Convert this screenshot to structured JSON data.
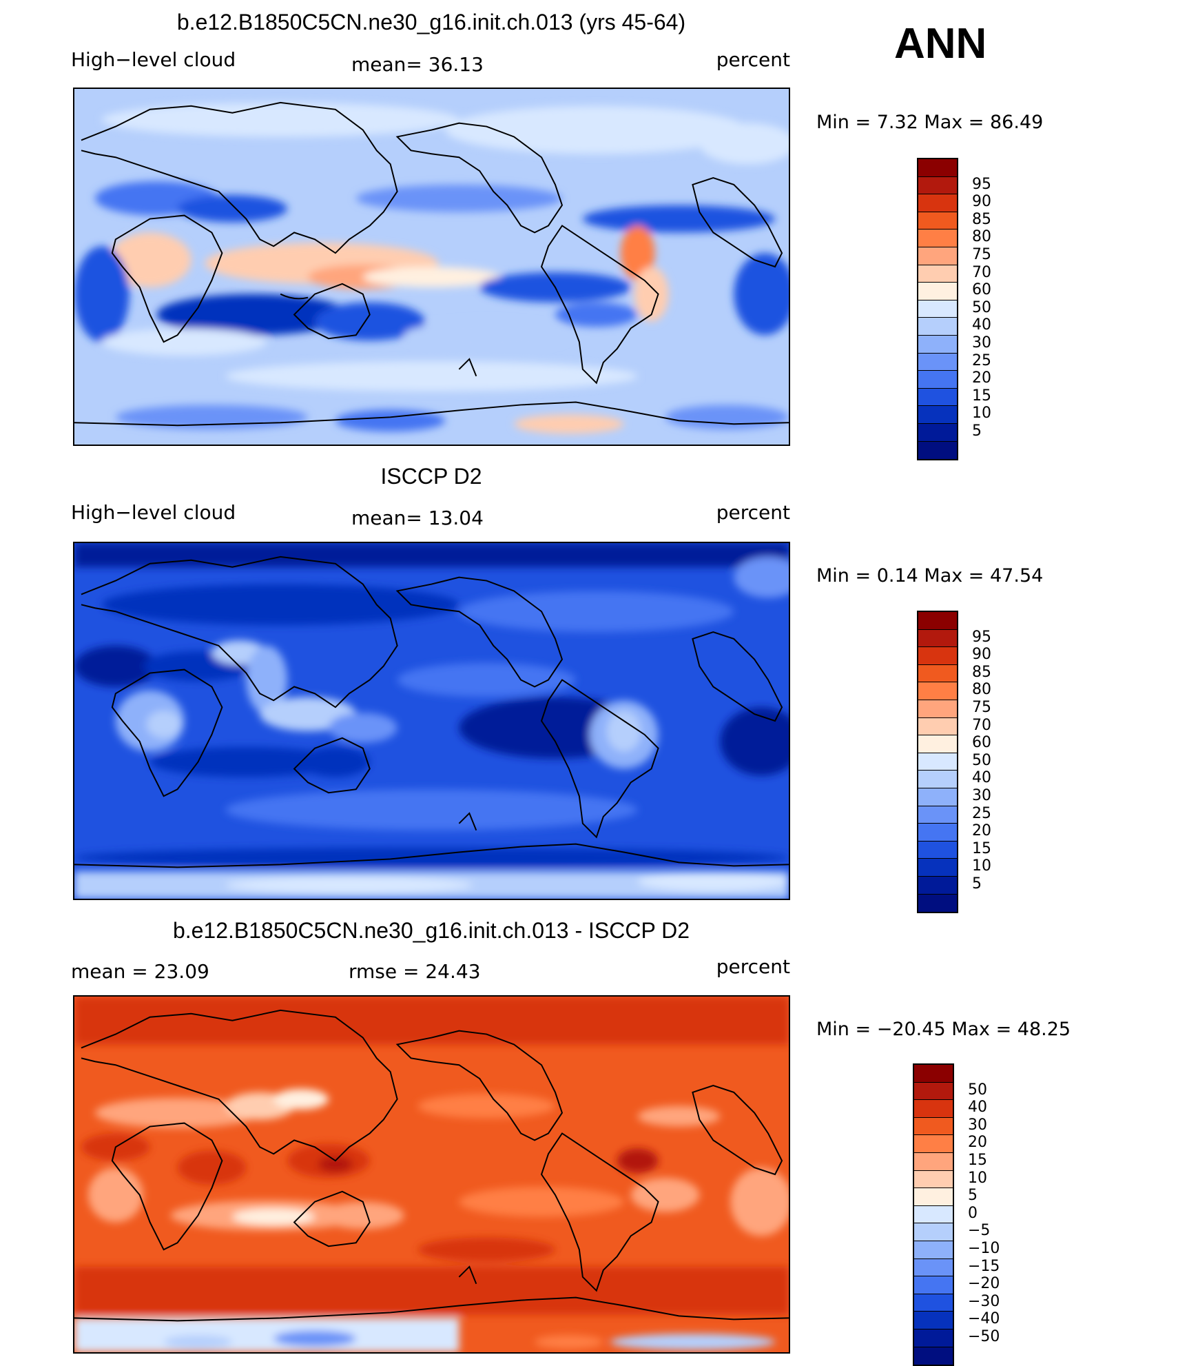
{
  "header": {
    "season": "ANN"
  },
  "panels": [
    {
      "id": "model",
      "title": "b.e12.B1850C5CN.ne30_g16.init.ch.013 (yrs 45-64)",
      "left_label": "High−level cloud",
      "center_label": "mean=   36.13",
      "right_label": "percent",
      "minmax": "Min =    7.32  Max =   86.49",
      "colorbar": {
        "colors": [
          "#8b0000",
          "#b2190d",
          "#d8340f",
          "#f05a1f",
          "#ff7f45",
          "#ffa57d",
          "#ffcdb0",
          "#fff0e0",
          "#d8e8ff",
          "#b5cffc",
          "#8eb1fa",
          "#6a93f8",
          "#4575f2",
          "#1f52e0",
          "#0632bd",
          "#001a99",
          "#000e80"
        ],
        "labels": [
          "95",
          "90",
          "85",
          "80",
          "75",
          "70",
          "60",
          "50",
          "40",
          "30",
          "25",
          "20",
          "15",
          "10",
          "5"
        ]
      }
    },
    {
      "id": "obs",
      "title": "ISCCP D2",
      "left_label": "High−level cloud",
      "center_label": "mean=   13.04",
      "right_label": "percent",
      "minmax": "Min =    0.14  Max =   47.54",
      "colorbar": {
        "colors": [
          "#8b0000",
          "#b2190d",
          "#d8340f",
          "#f05a1f",
          "#ff7f45",
          "#ffa57d",
          "#ffcdb0",
          "#fff0e0",
          "#d8e8ff",
          "#b5cffc",
          "#8eb1fa",
          "#6a93f8",
          "#4575f2",
          "#1f52e0",
          "#0632bd",
          "#001a99",
          "#000e80"
        ],
        "labels": [
          "95",
          "90",
          "85",
          "80",
          "75",
          "70",
          "60",
          "50",
          "40",
          "30",
          "25",
          "20",
          "15",
          "10",
          "5"
        ]
      }
    },
    {
      "id": "diff",
      "title": "b.e12.B1850C5CN.ne30_g16.init.ch.013 - ISCCP D2",
      "left_label": "mean =    23.09",
      "center_label": "rmse =    24.43",
      "right_label": "percent",
      "minmax": "Min = −20.45  Max =   48.25",
      "colorbar": {
        "colors": [
          "#8b0000",
          "#b2190d",
          "#d8340f",
          "#f05a1f",
          "#ff7f45",
          "#ffa57d",
          "#ffcdb0",
          "#fff0e0",
          "#d8e8ff",
          "#b5cffc",
          "#8eb1fa",
          "#6a93f8",
          "#4575f2",
          "#1f52e0",
          "#0632bd",
          "#001a99",
          "#000e80"
        ],
        "labels": [
          "50",
          "40",
          "30",
          "20",
          "15",
          "10",
          "5",
          "0",
          "−5",
          "−10",
          "−15",
          "−20",
          "−30",
          "−40",
          "−50"
        ]
      }
    }
  ]
}
